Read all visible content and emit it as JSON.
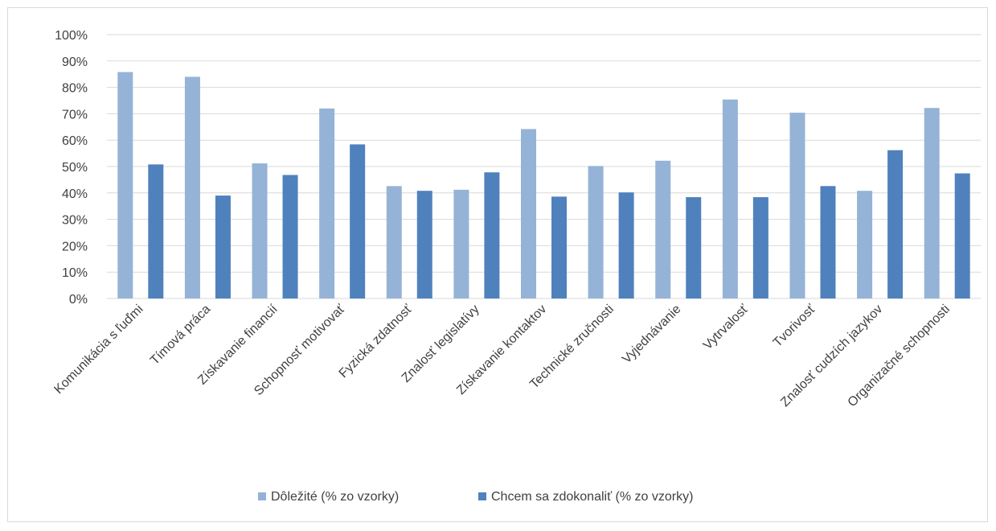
{
  "chart_data": {
    "type": "bar",
    "title": "",
    "xlabel": "",
    "ylabel": "",
    "ylim": [
      0,
      100
    ],
    "yticks": [
      "0%",
      "10%",
      "20%",
      "30%",
      "40%",
      "50%",
      "60%",
      "70%",
      "80%",
      "90%",
      "100%"
    ],
    "grid": true,
    "legend_position": "bottom",
    "categories": [
      "Komunikácia s ľuďmi",
      "Tímová práca",
      "Získavanie financií",
      "Schopnosť motivovať",
      "Fyzická zdatnosť",
      "Znalosť legislatívy",
      "Získavanie kontaktov",
      "Technické zručnosti",
      "Vyjednávanie",
      "Vytrvalosť",
      "Tvorivosť",
      "Znalosť cudzích jazykov",
      "Organizačné schopnosti"
    ],
    "series": [
      {
        "name": "Dôležité (% zo vzorky)",
        "color": "#95b3d7",
        "values": [
          85.8,
          84.0,
          51.2,
          72.0,
          42.6,
          41.2,
          64.2,
          50.2,
          52.2,
          75.4,
          70.4,
          40.8,
          72.2
        ]
      },
      {
        "name": "Chcem sa zdokonaliť (% zo vzorky)",
        "color": "#4f81bd",
        "values": [
          50.8,
          39.0,
          46.8,
          58.4,
          40.8,
          47.8,
          38.6,
          40.2,
          38.4,
          38.4,
          42.6,
          56.2,
          47.4
        ]
      }
    ]
  }
}
